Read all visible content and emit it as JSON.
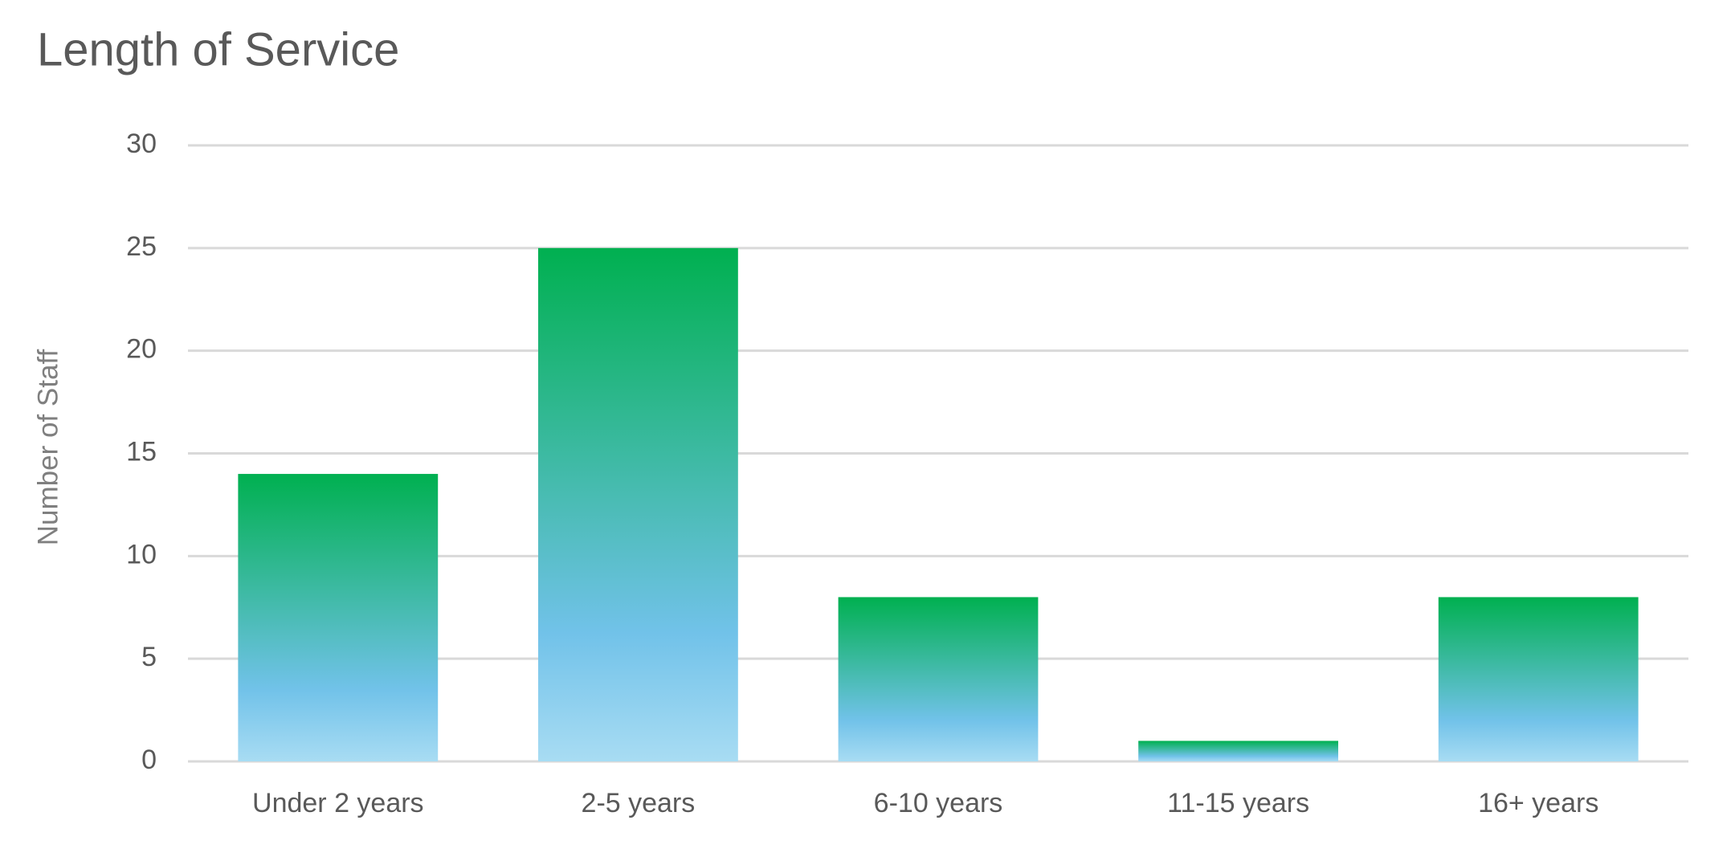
{
  "chart_data": {
    "type": "bar",
    "title": "Length of Service",
    "y_label": "Number of Staff",
    "categories": [
      "Under 2 years",
      "2-5 years",
      "6-10 years",
      "11-15 years",
      "16+ years"
    ],
    "values": [
      14,
      25,
      8,
      1,
      8
    ],
    "gradient": [
      "#00b050",
      "#71c2e9",
      "#a8dcf3"
    ],
    "ylim": [
      0,
      30
    ],
    "yticks": [
      0,
      5,
      10,
      15,
      20,
      25,
      30
    ],
    "grid": true
  }
}
